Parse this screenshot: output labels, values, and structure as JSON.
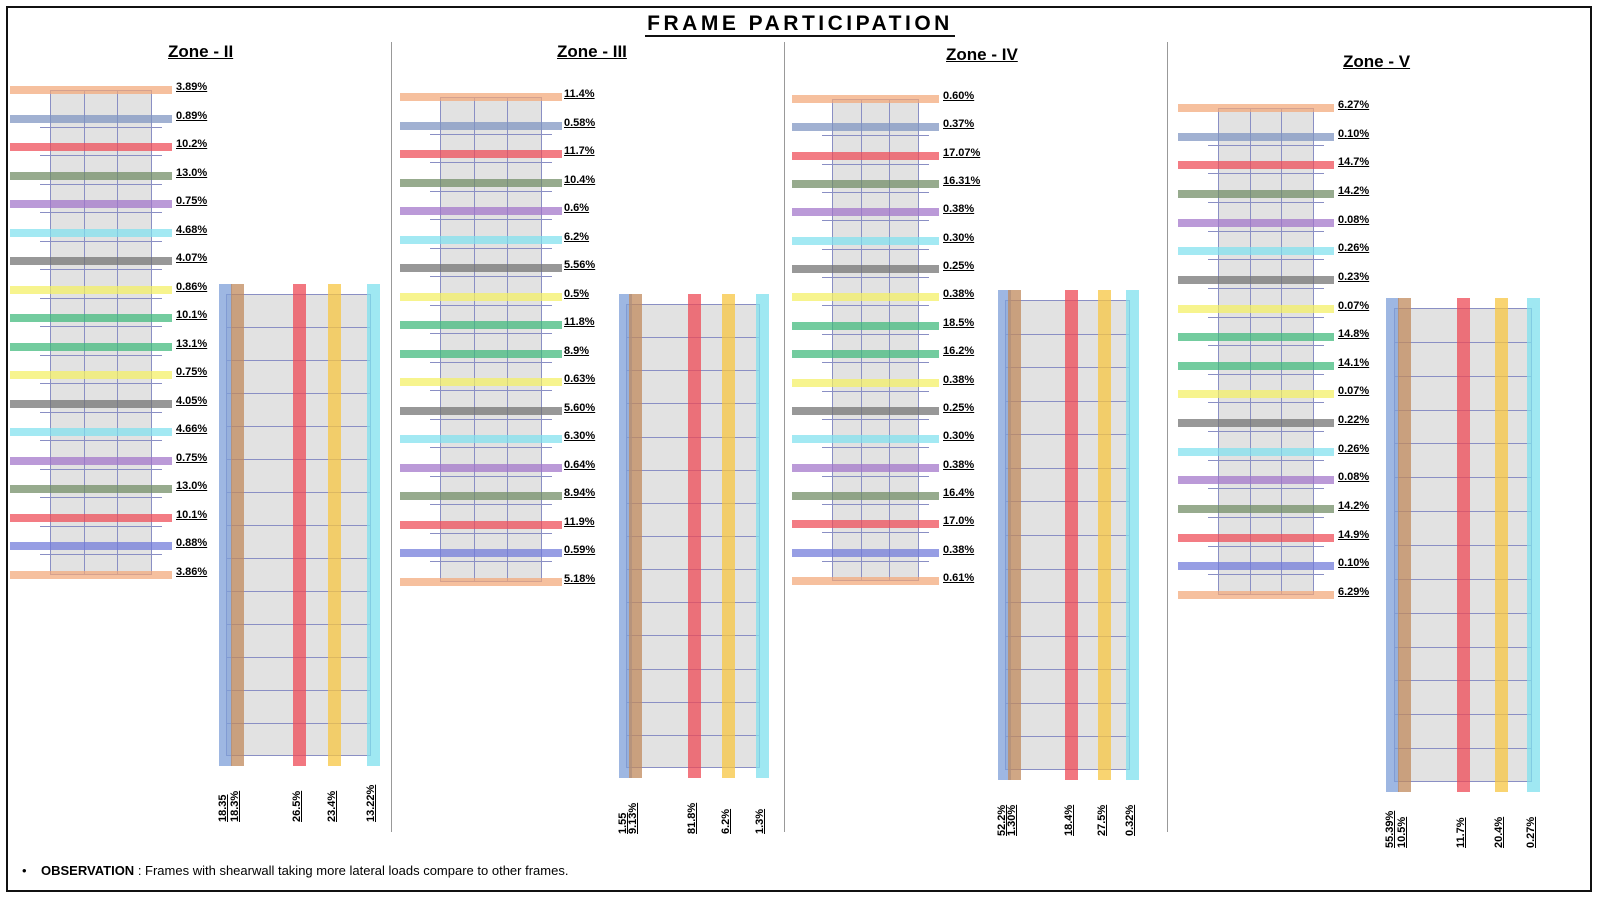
{
  "title": "FRAME PARTICIPATION",
  "observation": {
    "bullet": "•",
    "label": "OBSERVATION",
    "text": " : Frames with shearwall  taking more lateral loads compare to other frames."
  },
  "band_colors": {
    "orange": "#f2a878",
    "slate": "#7d93c0",
    "red": "#ee4a55",
    "olive": "#6f8a63",
    "purple": "#a173c9",
    "cyan": "#7fe0ee",
    "gray": "#707070",
    "yellow": "#f4f062",
    "green": "#3db87a",
    "blue": "#6f79d9",
    "ltblue": "#7e9fd8",
    "brown": "#c08a5c",
    "gold": "#f7c542"
  },
  "zones": [
    {
      "name": "Zone - II",
      "bands": [
        {
          "color": "orange",
          "value": "3.89%"
        },
        {
          "color": "slate",
          "value": "0.89%"
        },
        {
          "color": "red",
          "value": "10.2%"
        },
        {
          "color": "olive",
          "value": "13.0%"
        },
        {
          "color": "purple",
          "value": "0.75%"
        },
        {
          "color": "cyan",
          "value": "4.68%"
        },
        {
          "color": "gray",
          "value": "4.07%"
        },
        {
          "color": "yellow",
          "value": "0.86%"
        },
        {
          "color": "green",
          "value": "10.1%"
        },
        {
          "color": "green",
          "value": "13.1%"
        },
        {
          "color": "yellow",
          "value": "0.75%"
        },
        {
          "color": "gray",
          "value": "4.05%"
        },
        {
          "color": "cyan",
          "value": "4.66%"
        },
        {
          "color": "purple",
          "value": "0.75%"
        },
        {
          "color": "olive",
          "value": "13.0%"
        },
        {
          "color": "red",
          "value": "10.1%"
        },
        {
          "color": "blue",
          "value": "0.88%"
        },
        {
          "color": "orange",
          "value": "3.86%"
        }
      ],
      "vertical": [
        {
          "color": "ltblue",
          "value": "18.35"
        },
        {
          "color": "brown",
          "value": "18.3%"
        },
        {
          "color": "red",
          "value": "26.5%"
        },
        {
          "color": "gold",
          "value": "23.4%"
        },
        {
          "color": "cyan",
          "value": "13.22%"
        }
      ]
    },
    {
      "name": "Zone - III",
      "bands": [
        {
          "color": "orange",
          "value": "11.4%"
        },
        {
          "color": "slate",
          "value": "0.58%"
        },
        {
          "color": "red",
          "value": "11.7%"
        },
        {
          "color": "olive",
          "value": "10.4%"
        },
        {
          "color": "purple",
          "value": "0.6%"
        },
        {
          "color": "cyan",
          "value": "6.2%"
        },
        {
          "color": "gray",
          "value": "5.56%"
        },
        {
          "color": "yellow",
          "value": "0.5%"
        },
        {
          "color": "green",
          "value": "11.8%"
        },
        {
          "color": "green",
          "value": "8.9%"
        },
        {
          "color": "yellow",
          "value": "0.63%"
        },
        {
          "color": "gray",
          "value": "5.60%"
        },
        {
          "color": "cyan",
          "value": "6.30%"
        },
        {
          "color": "purple",
          "value": "0.64%"
        },
        {
          "color": "olive",
          "value": "8.94%"
        },
        {
          "color": "red",
          "value": "11.9%"
        },
        {
          "color": "blue",
          "value": "0.59%"
        },
        {
          "color": "orange",
          "value": "5.18%"
        }
      ],
      "vertical": [
        {
          "color": "ltblue",
          "value": "1.55"
        },
        {
          "color": "brown",
          "value": "9.13%"
        },
        {
          "color": "red",
          "value": "81.8%"
        },
        {
          "color": "gold",
          "value": "6.2%"
        },
        {
          "color": "cyan",
          "value": "1.3%"
        }
      ]
    },
    {
      "name": "Zone - IV",
      "bands": [
        {
          "color": "orange",
          "value": "0.60%"
        },
        {
          "color": "slate",
          "value": "0.37%"
        },
        {
          "color": "red",
          "value": "17.07%"
        },
        {
          "color": "olive",
          "value": "16.31%"
        },
        {
          "color": "purple",
          "value": "0.38%"
        },
        {
          "color": "cyan",
          "value": "0.30%"
        },
        {
          "color": "gray",
          "value": "0.25%"
        },
        {
          "color": "yellow",
          "value": "0.38%"
        },
        {
          "color": "green",
          "value": "18.5%"
        },
        {
          "color": "green",
          "value": "16.2%"
        },
        {
          "color": "yellow",
          "value": "0.38%"
        },
        {
          "color": "gray",
          "value": "0.25%"
        },
        {
          "color": "cyan",
          "value": "0.30%"
        },
        {
          "color": "purple",
          "value": "0.38%"
        },
        {
          "color": "olive",
          "value": "16.4%"
        },
        {
          "color": "red",
          "value": "17.0%"
        },
        {
          "color": "blue",
          "value": "0.38%"
        },
        {
          "color": "orange",
          "value": "0.61%"
        }
      ],
      "vertical": [
        {
          "color": "ltblue",
          "value": "52.2%"
        },
        {
          "color": "brown",
          "value": "1.30%"
        },
        {
          "color": "red",
          "value": "18.4%"
        },
        {
          "color": "gold",
          "value": "27.5%"
        },
        {
          "color": "cyan",
          "value": "0.32%"
        }
      ]
    },
    {
      "name": "Zone - V",
      "bands": [
        {
          "color": "orange",
          "value": "6.27%"
        },
        {
          "color": "slate",
          "value": "0.10%"
        },
        {
          "color": "red",
          "value": "14.7%"
        },
        {
          "color": "olive",
          "value": "14.2%"
        },
        {
          "color": "purple",
          "value": "0.08%"
        },
        {
          "color": "cyan",
          "value": "0.26%"
        },
        {
          "color": "gray",
          "value": "0.23%"
        },
        {
          "color": "yellow",
          "value": "0.07%"
        },
        {
          "color": "green",
          "value": "14.8%"
        },
        {
          "color": "green",
          "value": "14.1%"
        },
        {
          "color": "yellow",
          "value": "0.07%"
        },
        {
          "color": "gray",
          "value": "0.22%"
        },
        {
          "color": "cyan",
          "value": "0.26%"
        },
        {
          "color": "purple",
          "value": "0.08%"
        },
        {
          "color": "olive",
          "value": "14.2%"
        },
        {
          "color": "red",
          "value": "14.9%"
        },
        {
          "color": "blue",
          "value": "0.10%"
        },
        {
          "color": "orange",
          "value": "6.29%"
        }
      ],
      "vertical": [
        {
          "color": "ltblue",
          "value": "55.39%"
        },
        {
          "color": "brown",
          "value": "10.5%"
        },
        {
          "color": "red",
          "value": "11.7%"
        },
        {
          "color": "gold",
          "value": "20.4%"
        },
        {
          "color": "cyan",
          "value": "0.27%"
        }
      ]
    }
  ]
}
